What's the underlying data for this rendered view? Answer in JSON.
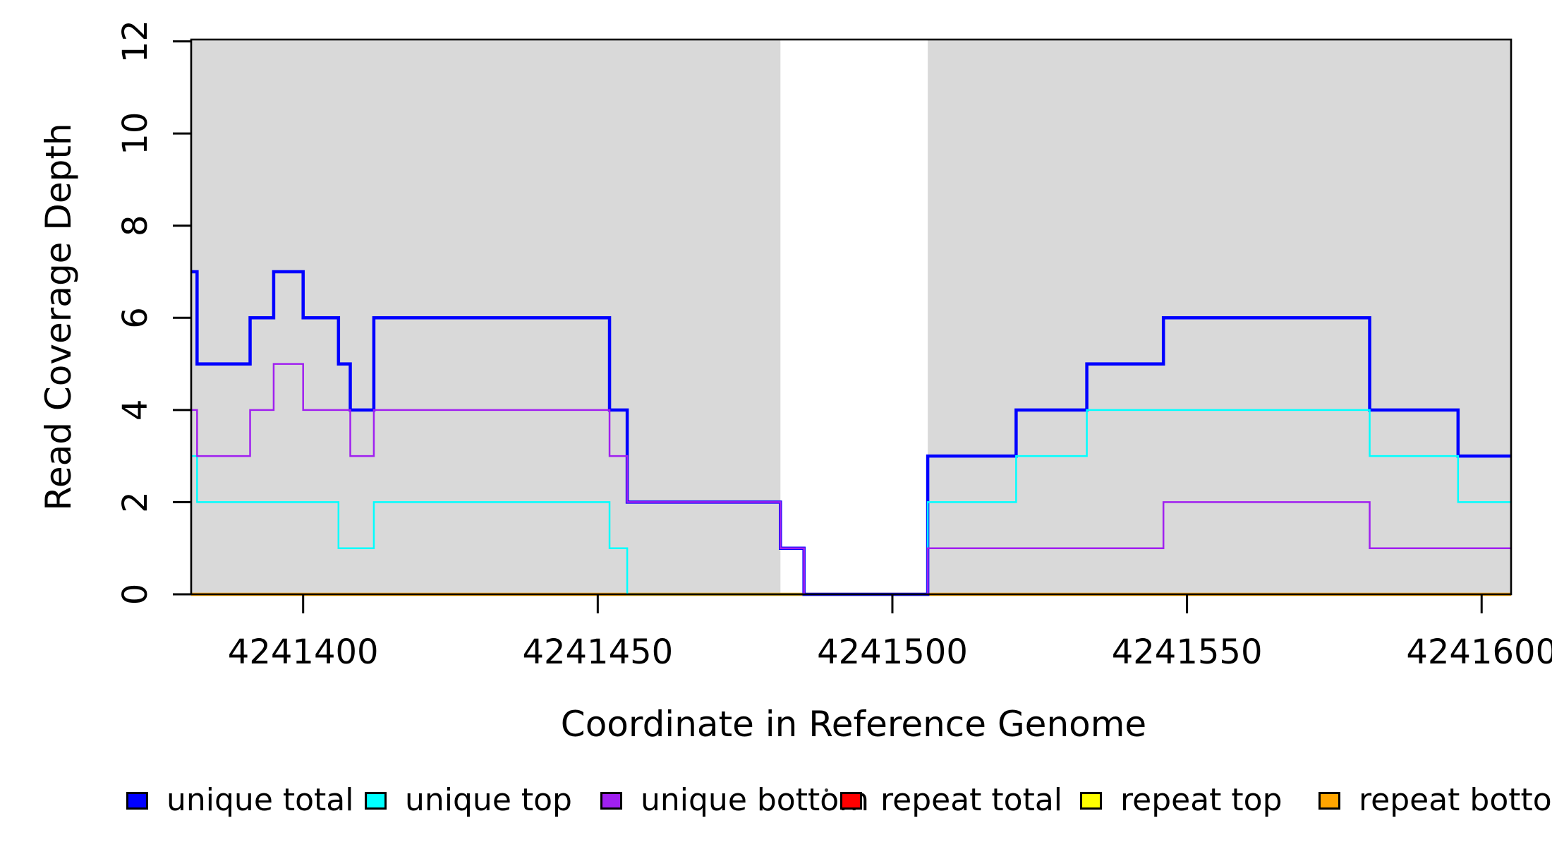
{
  "figure": {
    "x_axis_label": "Coordinate in Reference Genome",
    "y_axis_label": "Read Coverage Depth"
  },
  "chart_data": {
    "type": "line",
    "line_style": "step",
    "title": "",
    "xlabel": "Coordinate in Reference Genome",
    "ylabel": "Read Coverage Depth",
    "xlim": [
      4241381,
      4241605
    ],
    "ylim": [
      0,
      12.04
    ],
    "x_ticks": [
      4241400,
      4241450,
      4241500,
      4241550,
      4241600
    ],
    "y_ticks": [
      0,
      2,
      4,
      6,
      8,
      10,
      12
    ],
    "grid": false,
    "legend_position": "bottom",
    "plot_background": "#ffffff",
    "shaded_region_color": "#d9d9d9",
    "shaded_regions": [
      {
        "x_start": 4241381,
        "x_end": 4241481
      },
      {
        "x_start": 4241506,
        "x_end": 4241605
      }
    ],
    "series": [
      {
        "name": "unique total",
        "color": "#0000ff",
        "line_width": 4.5,
        "draw_order": 4,
        "steps": [
          [
            4241381,
            7
          ],
          [
            4241382,
            5
          ],
          [
            4241391,
            6
          ],
          [
            4241395,
            7
          ],
          [
            4241400,
            6
          ],
          [
            4241406,
            5
          ],
          [
            4241408,
            4
          ],
          [
            4241412,
            6
          ],
          [
            4241452,
            4
          ],
          [
            4241455,
            2
          ],
          [
            4241481,
            1
          ],
          [
            4241485,
            0
          ],
          [
            4241506,
            3
          ],
          [
            4241521,
            4
          ],
          [
            4241533,
            5
          ],
          [
            4241546,
            6
          ],
          [
            4241581,
            4
          ],
          [
            4241596,
            3
          ]
        ]
      },
      {
        "name": "unique top",
        "color": "#00ffff",
        "line_width": 2.5,
        "draw_order": 5,
        "steps": [
          [
            4241381,
            3
          ],
          [
            4241382,
            2
          ],
          [
            4241406,
            1
          ],
          [
            4241412,
            2
          ],
          [
            4241452,
            1
          ],
          [
            4241455,
            0
          ],
          [
            4241506,
            2
          ],
          [
            4241521,
            3
          ],
          [
            4241533,
            4
          ],
          [
            4241581,
            3
          ],
          [
            4241596,
            2
          ]
        ]
      },
      {
        "name": "unique bottom",
        "color": "#a020f0",
        "line_width": 2.5,
        "draw_order": 6,
        "steps": [
          [
            4241381,
            4
          ],
          [
            4241382,
            3
          ],
          [
            4241391,
            4
          ],
          [
            4241395,
            5
          ],
          [
            4241400,
            4
          ],
          [
            4241408,
            3
          ],
          [
            4241412,
            4
          ],
          [
            4241452,
            3
          ],
          [
            4241455,
            2
          ],
          [
            4241481,
            1
          ],
          [
            4241485,
            0
          ],
          [
            4241506,
            1
          ],
          [
            4241546,
            2
          ],
          [
            4241581,
            1
          ]
        ]
      },
      {
        "name": "repeat total",
        "color": "#ff0000",
        "line_width": 2.5,
        "draw_order": 1,
        "steps": [
          [
            4241381,
            0
          ]
        ]
      },
      {
        "name": "repeat top",
        "color": "#ffff00",
        "line_width": 2.5,
        "draw_order": 2,
        "steps": [
          [
            4241381,
            0
          ]
        ]
      },
      {
        "name": "repeat bottom",
        "color": "#ffa500",
        "line_width": 4.5,
        "draw_order": 3,
        "steps": [
          [
            4241381,
            0
          ]
        ]
      }
    ]
  }
}
